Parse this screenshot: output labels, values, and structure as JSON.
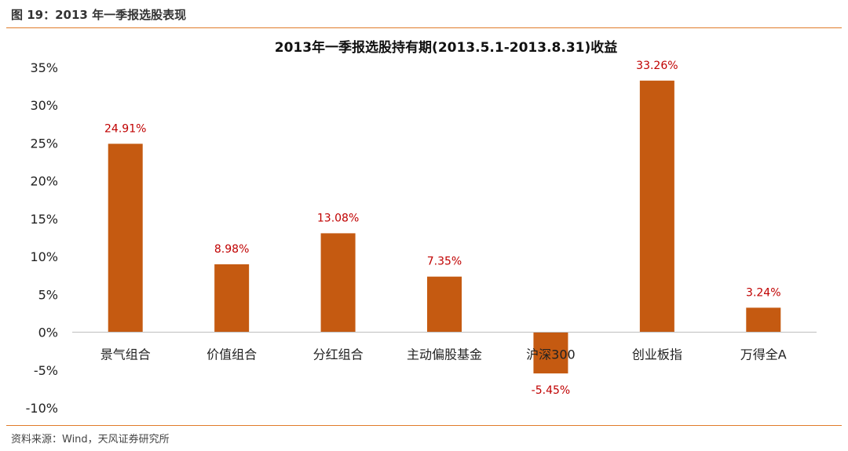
{
  "figure_header": "图 19：2013 年一季报选股表现",
  "source": "资料来源：Wind，天风证券研究所",
  "colors": {
    "bar": "#c55a11",
    "data_label": "#c00000",
    "rule": "#e07b2a",
    "zero_line": "#bfbfbf"
  },
  "chart_data": {
    "type": "bar",
    "title": "2013年一季报选股持有期(2013.5.1-2013.8.31)收益",
    "categories": [
      "景气组合",
      "价值组合",
      "分红组合",
      "主动偏股基金",
      "沪深300",
      "创业板指",
      "万得全A"
    ],
    "values": [
      24.91,
      8.98,
      13.08,
      7.35,
      -5.45,
      33.26,
      3.24
    ],
    "data_labels": [
      "24.91%",
      "8.98%",
      "13.08%",
      "7.35%",
      "-5.45%",
      "33.26%",
      "3.24%"
    ],
    "y_ticks": [
      -10,
      -5,
      0,
      5,
      10,
      15,
      20,
      25,
      30,
      35
    ],
    "y_tick_labels": [
      "-10%",
      "-5%",
      "0%",
      "5%",
      "10%",
      "15%",
      "20%",
      "25%",
      "30%",
      "35%"
    ],
    "ylim": [
      -10,
      35
    ],
    "xlabel": "",
    "ylabel": "",
    "grid": false,
    "legend": "none"
  }
}
